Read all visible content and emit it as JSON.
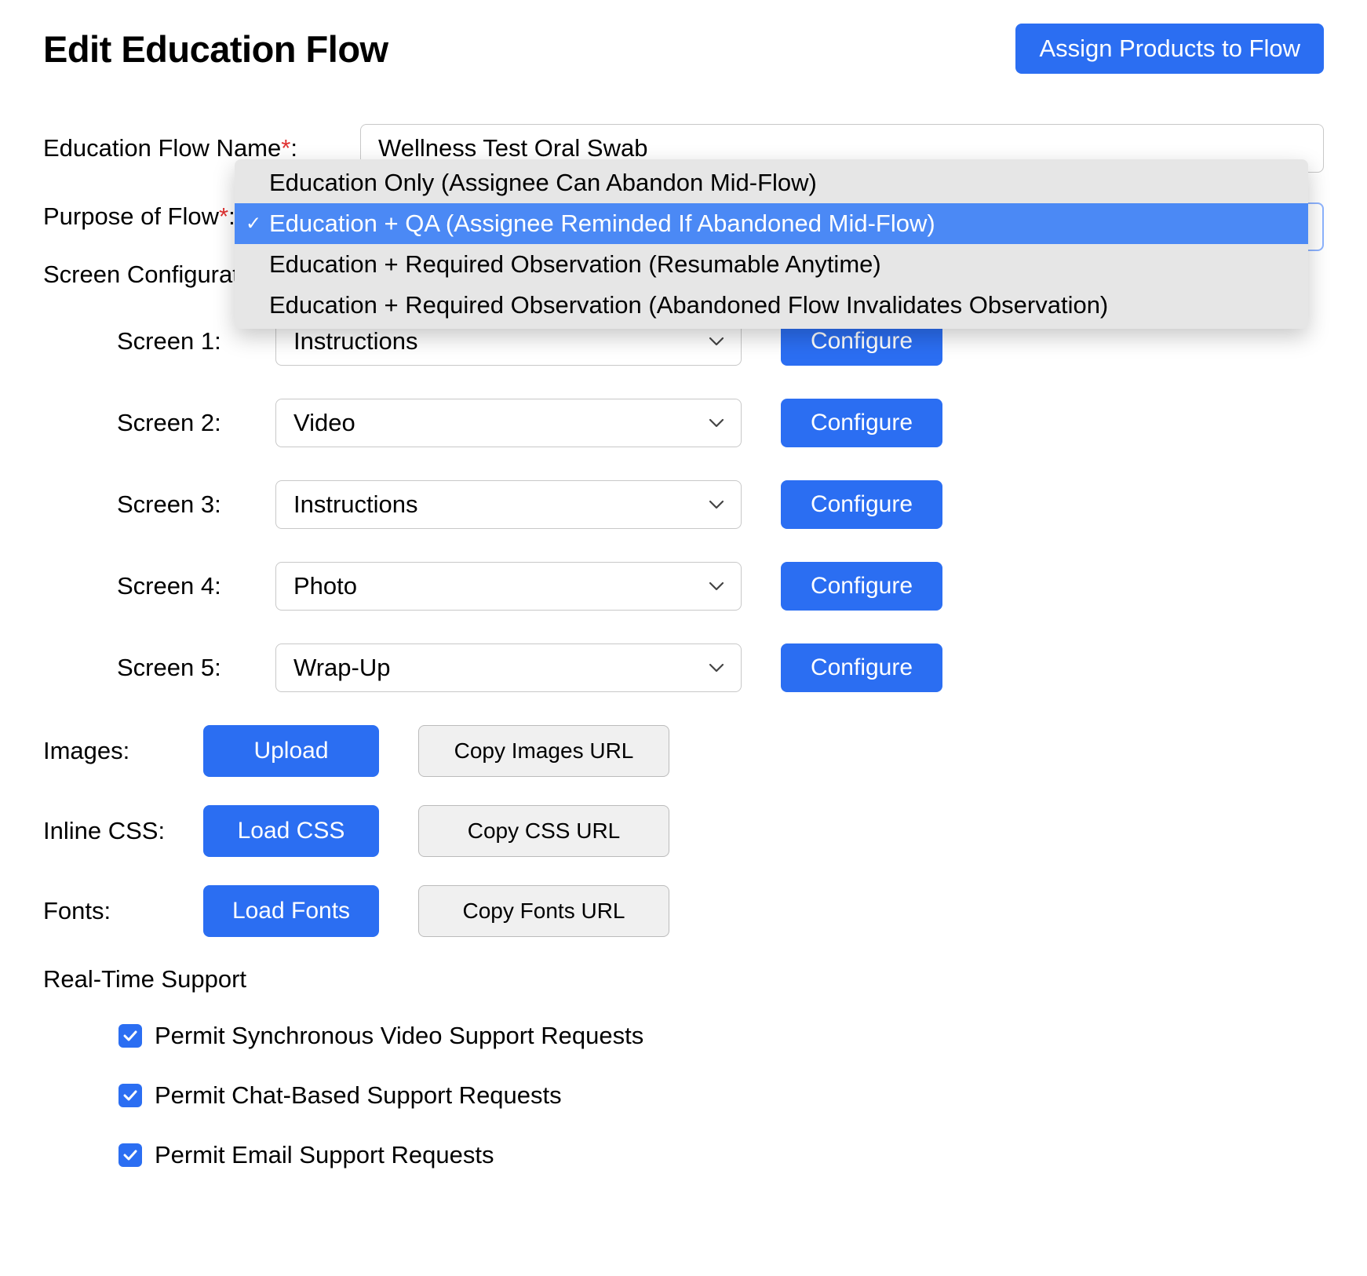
{
  "colors": {
    "primary": "#2b6ef2",
    "primary_hover": "#4b89f5",
    "required": "#e03131",
    "border": "#c8c8c8",
    "secondary_bg": "#f0f0f0",
    "dropdown_bg": "#e6e6e6",
    "text": "#000000",
    "white": "#ffffff"
  },
  "header": {
    "title": "Edit Education Flow",
    "assign_button": "Assign Products to Flow"
  },
  "form": {
    "name_label": "Education Flow Name",
    "name_value": "Wellness Test Oral Swab",
    "purpose_label": "Purpose of Flow",
    "label_suffix": ":"
  },
  "purpose_dropdown": {
    "options": [
      "Education Only (Assignee Can Abandon Mid-Flow)",
      "Education + QA (Assignee Reminded If Abandoned Mid-Flow)",
      "Education + Required Observation (Resumable Anytime)",
      "Education + Required Observation (Abandoned Flow Invalidates Observation)"
    ],
    "selected_index": 1
  },
  "screen_config": {
    "heading": "Screen Configuration:",
    "configure_label": "Configure",
    "screens": [
      {
        "label": "Screen 1:",
        "value": "Instructions"
      },
      {
        "label": "Screen 2:",
        "value": "Video"
      },
      {
        "label": "Screen 3:",
        "value": "Instructions"
      },
      {
        "label": "Screen 4:",
        "value": "Photo"
      },
      {
        "label": "Screen 5:",
        "value": "Wrap-Up"
      }
    ]
  },
  "assets": {
    "rows": [
      {
        "label": "Images:",
        "primary": "Upload",
        "secondary": "Copy Images URL"
      },
      {
        "label": "Inline CSS:",
        "primary": "Load CSS",
        "secondary": "Copy CSS URL"
      },
      {
        "label": "Fonts:",
        "primary": "Load Fonts",
        "secondary": "Copy Fonts URL"
      }
    ]
  },
  "support": {
    "heading": "Real-Time Support",
    "items": [
      {
        "checked": true,
        "label": "Permit Synchronous Video Support Requests"
      },
      {
        "checked": true,
        "label": "Permit Chat-Based Support Requests"
      },
      {
        "checked": true,
        "label": "Permit Email Support Requests"
      }
    ]
  }
}
